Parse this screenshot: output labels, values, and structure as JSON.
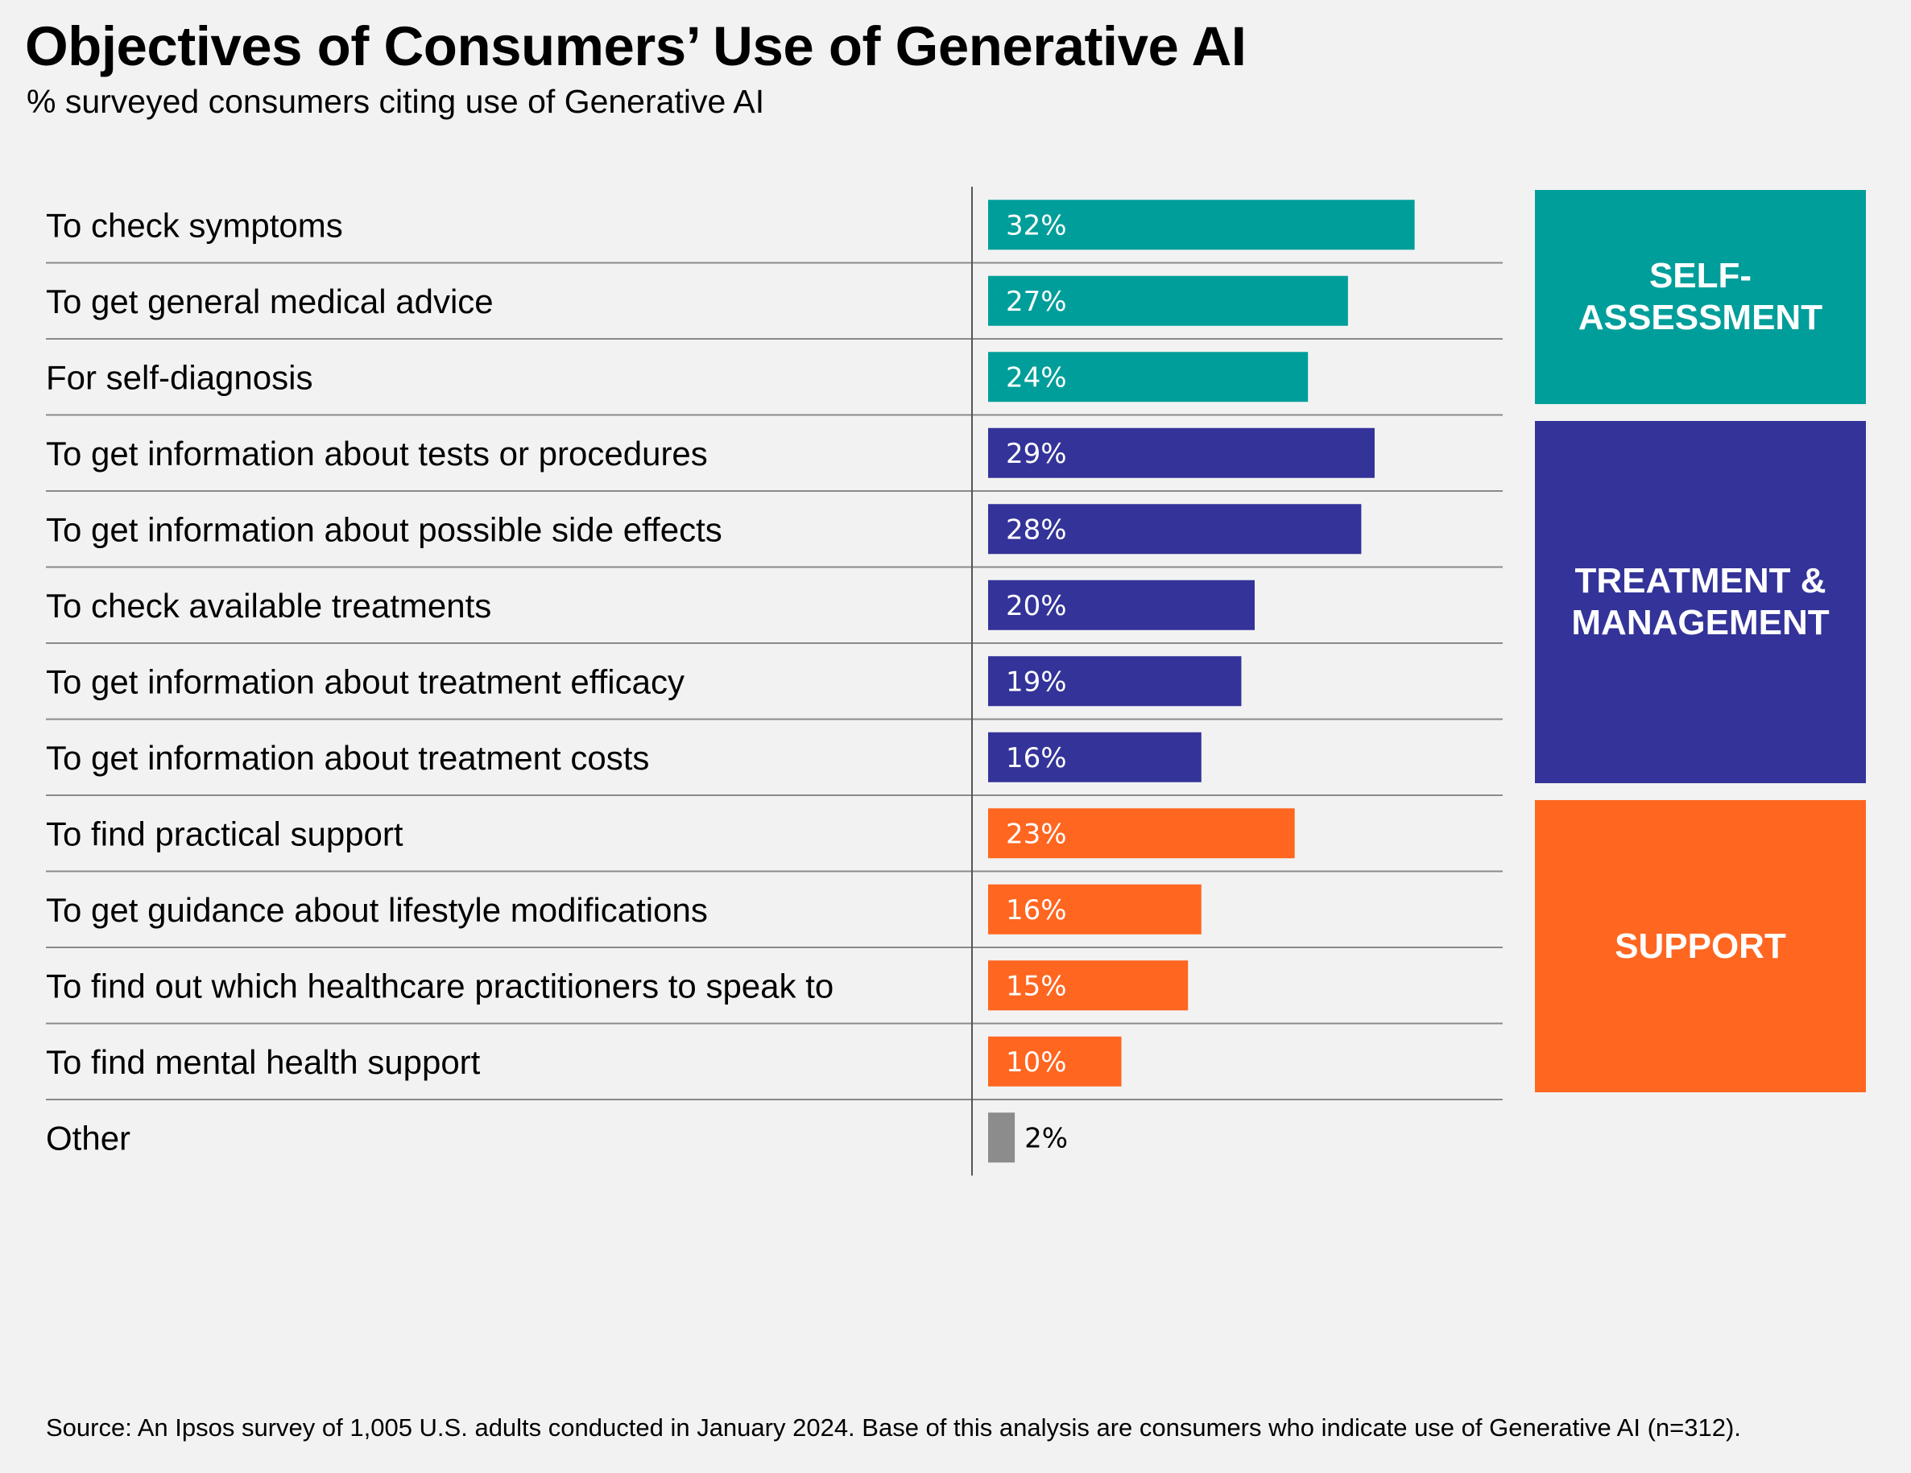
{
  "header": {
    "title": "Objectives of Consumers’ Use of Generative AI",
    "subtitle": "% surveyed consumers citing use of Generative AI"
  },
  "colors": {
    "self_assessment": "#009e9a",
    "treatment_management": "#333399",
    "support": "#ff6620",
    "other": "#8c8c8c",
    "background": "#f2f2f2"
  },
  "groups": [
    {
      "label": "SELF-\nASSESSMENT",
      "color": "#009e9a"
    },
    {
      "label": "TREATMENT &\nMANAGEMENT",
      "color": "#333399"
    },
    {
      "label": "SUPPORT",
      "color": "#ff6620"
    }
  ],
  "chart_data": {
    "type": "bar",
    "orientation": "horizontal",
    "title": "Objectives of Consumers’ Use of Generative AI",
    "subtitle": "% surveyed consumers citing use of Generative AI",
    "categories": [
      "To check symptoms",
      "To get general medical advice",
      "For self-diagnosis",
      "To get information about tests or procedures",
      "To get information about possible side effects",
      "To check available treatments",
      "To get information about treatment efficacy",
      "To get information about treatment costs",
      "To find practical support",
      "To get guidance about lifestyle modifications",
      "To find out which healthcare practitioners to speak to",
      "To find mental health support",
      "Other"
    ],
    "values": [
      32,
      27,
      24,
      29,
      28,
      20,
      19,
      16,
      23,
      16,
      15,
      10,
      2
    ],
    "value_labels": [
      "32%",
      "27%",
      "24%",
      "29%",
      "28%",
      "20%",
      "19%",
      "16%",
      "23%",
      "16%",
      "15%",
      "10%",
      "2%"
    ],
    "groups": [
      "SELF-ASSESSMENT",
      "SELF-ASSESSMENT",
      "SELF-ASSESSMENT",
      "TREATMENT & MANAGEMENT",
      "TREATMENT & MANAGEMENT",
      "TREATMENT & MANAGEMENT",
      "TREATMENT & MANAGEMENT",
      "TREATMENT & MANAGEMENT",
      "SUPPORT",
      "SUPPORT",
      "SUPPORT",
      "SUPPORT",
      "Other"
    ],
    "bar_colors": [
      "#009e9a",
      "#009e9a",
      "#009e9a",
      "#333399",
      "#333399",
      "#333399",
      "#333399",
      "#333399",
      "#ff6620",
      "#ff6620",
      "#ff6620",
      "#ff6620",
      "#8c8c8c"
    ],
    "xlim": [
      0,
      35
    ],
    "grid": false,
    "legend": "right"
  },
  "footer": {
    "source": "Source: An Ipsos survey of 1,005 U.S. adults conducted in January 2024. Base of this analysis are consumers who indicate use of Generative AI (n=312)."
  }
}
